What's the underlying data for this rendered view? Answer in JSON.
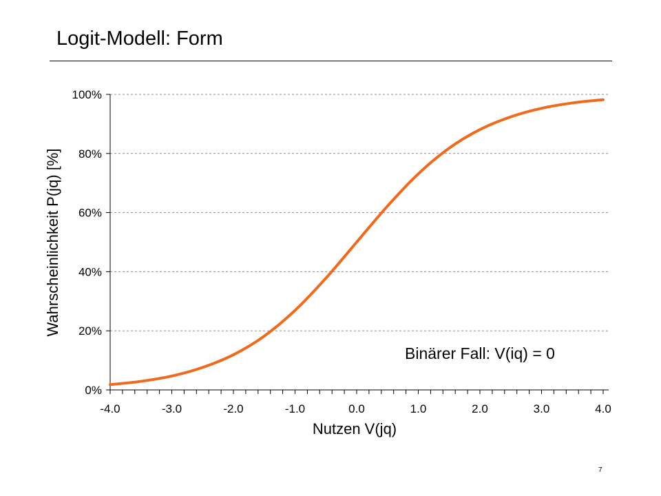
{
  "slide": {
    "title": "Logit-Modell: Form",
    "page_number": "7"
  },
  "chart_data": {
    "type": "line",
    "xlabel": "Nutzen V(jq)",
    "ylabel": "Wahrscheinlichkeit P(jq) [%]",
    "xlim": [
      -4.0,
      4.0
    ],
    "ylim": [
      0,
      100
    ],
    "x_ticks": [
      "-4.0",
      "-3.0",
      "-2.0",
      "-1.0",
      "0.0",
      "1.0",
      "2.0",
      "3.0",
      "4.0"
    ],
    "y_ticks": [
      "0%",
      "20%",
      "40%",
      "60%",
      "80%",
      "100%"
    ],
    "grid": "horizontal dashed",
    "annotation": "Binärer Fall: V(iq) = 0",
    "series": [
      {
        "color": "#ee6a1e",
        "x": [
          -4.0,
          -3.5,
          -3.0,
          -2.5,
          -2.0,
          -1.5,
          -1.0,
          -0.5,
          0.0,
          0.5,
          1.0,
          1.5,
          2.0,
          2.5,
          3.0,
          3.5,
          4.0
        ],
        "y": [
          1.8,
          2.9,
          4.7,
          7.6,
          11.9,
          18.2,
          26.9,
          37.8,
          50.0,
          62.2,
          73.1,
          81.8,
          88.1,
          92.4,
          95.3,
          97.1,
          98.2
        ]
      }
    ]
  }
}
